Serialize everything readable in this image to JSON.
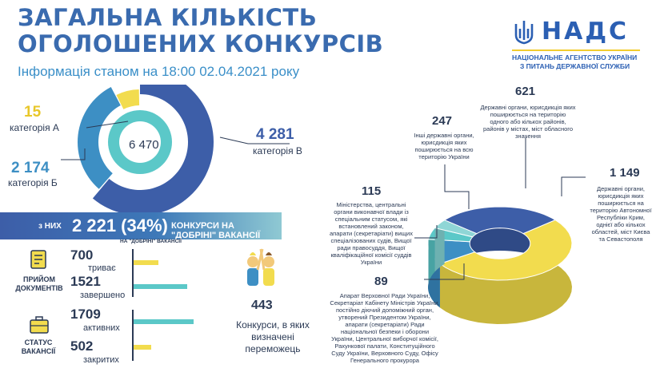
{
  "header": {
    "title_line1": "ЗАГАЛЬНА КІЛЬКІСТЬ",
    "title_line2": "ОГОЛОШЕНИХ КОНКУРСІВ",
    "subtitle": "Інформація станом на 18:00 02.04.2021 року"
  },
  "logo": {
    "name": "НАДС",
    "line1": "НАЦІОНАЛЬНЕ АГЕНТСТВО УКРАЇНИ",
    "line2": "З ПИТАНЬ ДЕРЖАВНОЇ СЛУЖБИ"
  },
  "colors": {
    "blue_dark": "#3d5ea8",
    "blue_mid": "#3d8fc4",
    "teal": "#5bc8c8",
    "teal_light": "#8fd6d6",
    "yellow": "#f2dc4e",
    "gray": "#8c9ba8"
  },
  "chart_data": [
    {
      "type": "pie",
      "title": "",
      "center_total": "6 470",
      "slices": [
        {
          "label": "категорія В",
          "value": 4281,
          "display": "4 281",
          "color": "#3d5ea8"
        },
        {
          "label": "категорія Б",
          "value": 2174,
          "display": "2 174",
          "color": "#3d8fc4"
        },
        {
          "label": "категорія А",
          "value": 15,
          "display": "15",
          "color": "#f2dc4e"
        }
      ]
    },
    {
      "type": "bar",
      "title": "",
      "categories": [
        "триває",
        "завершено",
        "активних",
        "закритих"
      ],
      "values": [
        700,
        1521,
        1709,
        502
      ],
      "groups": [
        {
          "name": "ПРИЙОМ ДОКУМЕНТІВ",
          "items": [
            "триває",
            "завершено"
          ]
        },
        {
          "name": "СТАТУС ВАКАНСІЇ",
          "items": [
            "активних",
            "закритих"
          ]
        }
      ]
    },
    {
      "type": "pie",
      "title": "",
      "slices": [
        {
          "value": 621,
          "label": "Державні органи, юрисдикція яких поширюється на територію одного або кількох районів, районів у містах, міст обласного значення",
          "color": "#3d5ea8"
        },
        {
          "value": 1149,
          "label": "Державні органи, юрисдикція яких поширюється на територію Автономної Республіки Крим, однієї або кількох областей, міст Києва та Севастополя",
          "color": "#f2dc4e"
        },
        {
          "value": 247,
          "label": "Інші державні органи, юрисдикція яких поширюється на всю територію України",
          "color": "#3d8fc4"
        },
        {
          "value": 115,
          "label": "Міністерства, центральні органи виконавчої влади із спеціальним статусом, які встановлений законом, апарати (секретаріати) вищих спеціалізованих судів, Вищої ради правосуддя, Вищої кваліфікаційної комісії суддів України",
          "color": "#5bc8c8"
        },
        {
          "value": 89,
          "label": "Апарат Верховної Ради України, Секретаріат Кабінету Міністрів України, постійно діючий допоміжний орган, утворений Президентом України, апарати (секретаріати) Ради національної безпеки і оборони України, Центральної виборчої комісії, Рахункової палати, Конституційного Суду України, Верховного Суду, Офісу Генерального прокурора",
          "color": "#8fd6d6"
        }
      ]
    }
  ],
  "left_labels": {
    "cat_a_num": "15",
    "cat_a": "категорія А",
    "cat_b_num": "2 174",
    "cat_b": "категорія Б",
    "cat_v_num": "4 281",
    "cat_v": "категорія В",
    "total": "6 470"
  },
  "banner": {
    "of_them": "з НИХ",
    "value": "2 221 (34%)",
    "label": "КОНКУРСИ НА \"ДОБРІНІ\" ВАКАНСІЇ",
    "note": "НА \"ДОБРІНІ\" ВАКАНСІЇ"
  },
  "stats": {
    "docs_label": "ПРИЙОМ ДОКУМЕНТІВ",
    "status_label": "СТАТУС ВАКАНСІЇ",
    "ongoing_num": "700",
    "ongoing": "триває",
    "finished_num": "1521",
    "finished": "завершено",
    "active_num": "1709",
    "active": "активних",
    "closed_num": "502",
    "closed": "закритих",
    "icon_docs": "document-icon",
    "icon_status": "briefcase-icon"
  },
  "winners": {
    "num": "443",
    "text": "Конкурси, в яких визначені переможець"
  },
  "right_labels": {
    "n621": "621",
    "n1149": "1 149",
    "n247": "247",
    "n115": "115",
    "n89": "89"
  }
}
